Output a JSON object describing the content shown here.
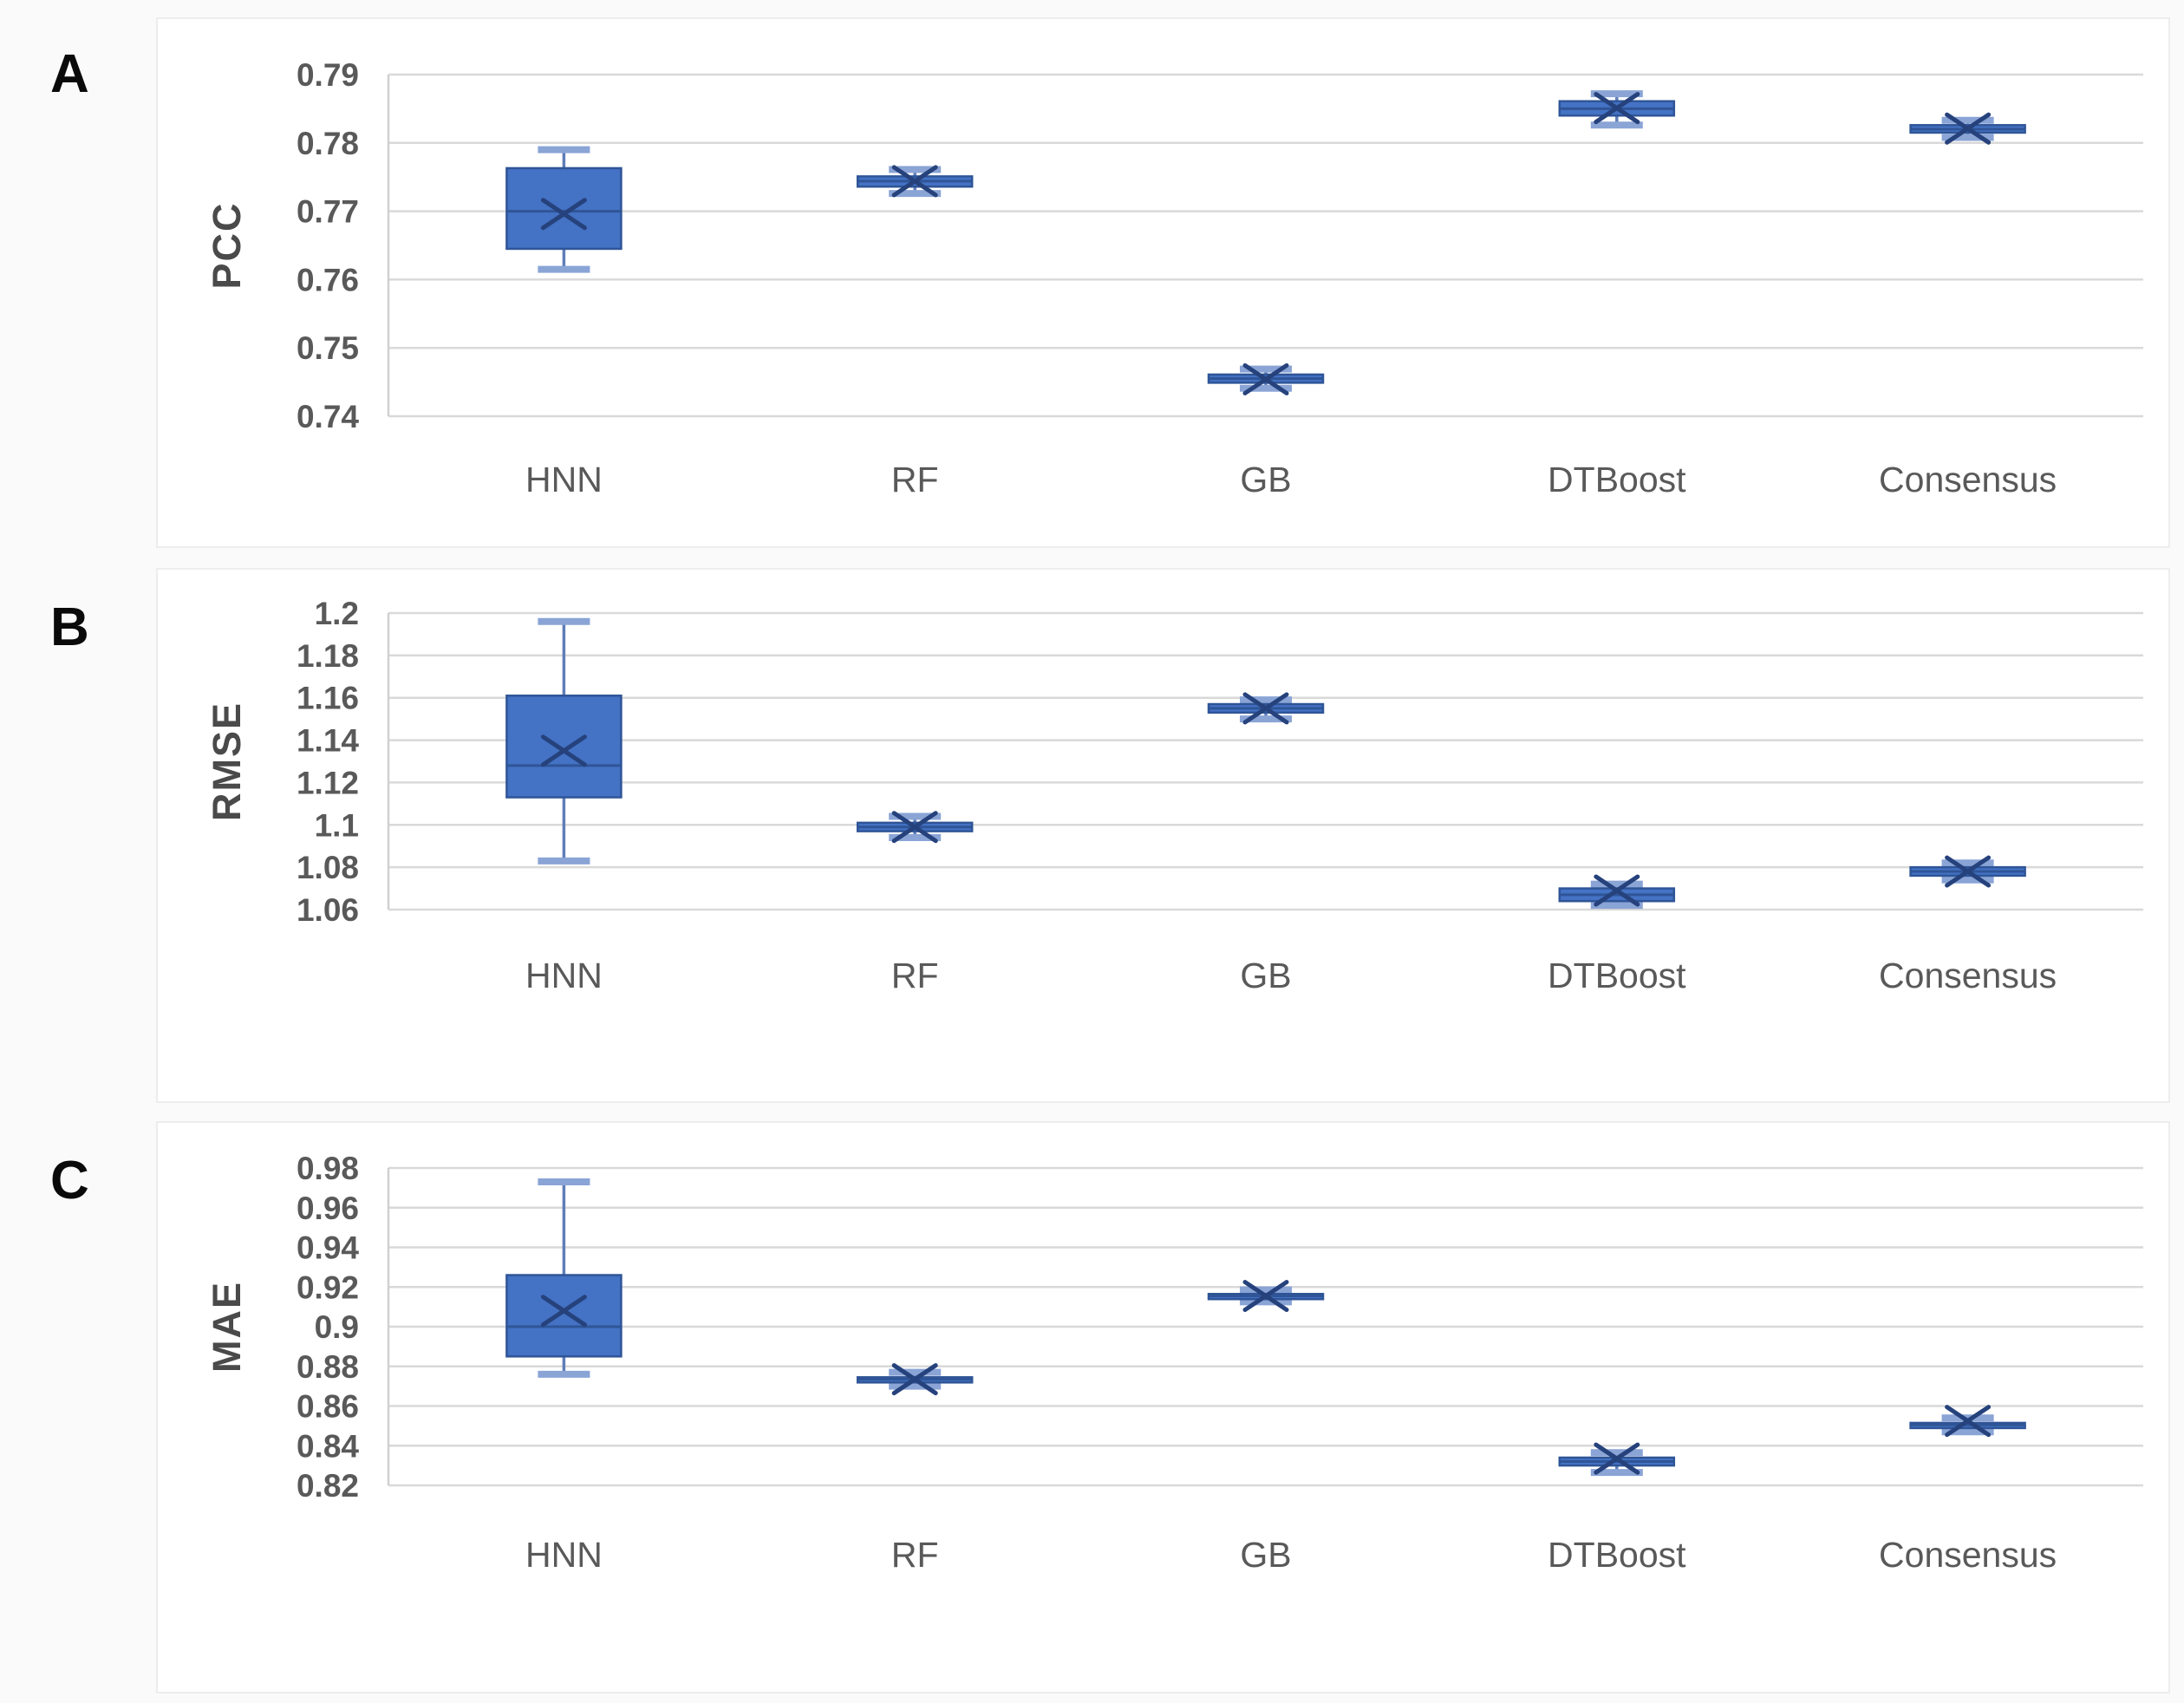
{
  "figure": {
    "panel_letters": [
      "A",
      "B",
      "C"
    ],
    "categories": [
      "HNN",
      "RF",
      "GB",
      "DTBoost",
      "Consensus"
    ]
  },
  "colors": {
    "box_fill": "#4472c4",
    "box_border": "#2f5597",
    "median_line": "#2f5597",
    "whisker_line": "#5f7db8",
    "whisker_cap": "#8aa4d6",
    "mean_marker": "#26427c",
    "gridline": "#d9d9d9",
    "axis_line": "#d0d0d0",
    "label_text": "#595959"
  },
  "chart_data": [
    {
      "type": "box",
      "panel_label": "A",
      "ylabel": "PCC",
      "xlabel": "",
      "ylim": [
        0.74,
        0.79
      ],
      "grid": true,
      "categories": [
        "HNN",
        "RF",
        "GB",
        "DTBoost",
        "Consensus"
      ],
      "yticks": [
        {
          "label": "0.79",
          "value": 0.79
        },
        {
          "label": "0.78",
          "value": 0.78
        },
        {
          "label": "0.77",
          "value": 0.77
        },
        {
          "label": "0.76",
          "value": 0.76
        },
        {
          "label": "0.75",
          "value": 0.75
        },
        {
          "label": "0.74",
          "value": 0.74
        }
      ],
      "series": [
        {
          "category": "HNN",
          "whisker_low": 0.7615,
          "q1": 0.7645,
          "median": 0.77,
          "mean": 0.7696,
          "q3": 0.7763,
          "whisker_high": 0.779
        },
        {
          "category": "RF",
          "whisker_low": 0.7726,
          "q1": 0.7736,
          "median": 0.7744,
          "mean": 0.7744,
          "q3": 0.7751,
          "whisker_high": 0.7761
        },
        {
          "category": "GB",
          "whisker_low": 0.7441,
          "q1": 0.7449,
          "median": 0.7455,
          "mean": 0.7454,
          "q3": 0.7461,
          "whisker_high": 0.7469
        },
        {
          "category": "DTBoost",
          "whisker_low": 0.7826,
          "q1": 0.784,
          "median": 0.785,
          "mean": 0.7851,
          "q3": 0.7861,
          "whisker_high": 0.7872
        },
        {
          "category": "Consensus",
          "whisker_low": 0.7808,
          "q1": 0.7815,
          "median": 0.782,
          "mean": 0.7821,
          "q3": 0.7826,
          "whisker_high": 0.7833
        }
      ]
    },
    {
      "type": "box",
      "panel_label": "B",
      "ylabel": "RMSE",
      "xlabel": "",
      "ylim": [
        1.06,
        1.2
      ],
      "grid": true,
      "categories": [
        "HNN",
        "RF",
        "GB",
        "DTBoost",
        "Consensus"
      ],
      "yticks": [
        {
          "label": "1.2",
          "value": 1.2
        },
        {
          "label": "1.18",
          "value": 1.18
        },
        {
          "label": "1.16",
          "value": 1.16
        },
        {
          "label": "1.14",
          "value": 1.14
        },
        {
          "label": "1.12",
          "value": 1.12
        },
        {
          "label": "1.1",
          "value": 1.1
        },
        {
          "label": "1.08",
          "value": 1.08
        },
        {
          "label": "1.06",
          "value": 1.06
        }
      ],
      "series": [
        {
          "category": "HNN",
          "whisker_low": 1.083,
          "q1": 1.113,
          "median": 1.128,
          "mean": 1.135,
          "q3": 1.161,
          "whisker_high": 1.196
        },
        {
          "category": "RF",
          "whisker_low": 1.094,
          "q1": 1.097,
          "median": 1.099,
          "mean": 1.099,
          "q3": 1.101,
          "whisker_high": 1.104
        },
        {
          "category": "GB",
          "whisker_low": 1.15,
          "q1": 1.153,
          "median": 1.155,
          "mean": 1.155,
          "q3": 1.157,
          "whisker_high": 1.159
        },
        {
          "category": "DTBoost",
          "whisker_low": 1.062,
          "q1": 1.064,
          "median": 1.067,
          "mean": 1.069,
          "q3": 1.07,
          "whisker_high": 1.072
        },
        {
          "category": "Consensus",
          "whisker_low": 1.074,
          "q1": 1.076,
          "median": 1.078,
          "mean": 1.078,
          "q3": 1.08,
          "whisker_high": 1.082
        }
      ]
    },
    {
      "type": "box",
      "panel_label": "C",
      "ylabel": "MAE",
      "xlabel": "",
      "ylim": [
        0.82,
        0.98
      ],
      "grid": true,
      "categories": [
        "HNN",
        "RF",
        "GB",
        "DTBoost",
        "Consensus"
      ],
      "yticks": [
        {
          "label": "0.98",
          "value": 0.98
        },
        {
          "label": "0.96",
          "value": 0.96
        },
        {
          "label": "0.94",
          "value": 0.94
        },
        {
          "label": "0.92",
          "value": 0.92
        },
        {
          "label": "0.9",
          "value": 0.9
        },
        {
          "label": "0.88",
          "value": 0.88
        },
        {
          "label": "0.86",
          "value": 0.86
        },
        {
          "label": "0.84",
          "value": 0.84
        },
        {
          "label": "0.82",
          "value": 0.82
        }
      ],
      "series": [
        {
          "category": "HNN",
          "whisker_low": 0.876,
          "q1": 0.885,
          "median": 0.9,
          "mean": 0.908,
          "q3": 0.926,
          "whisker_high": 0.973
        },
        {
          "category": "RF",
          "whisker_low": 0.87,
          "q1": 0.8725,
          "median": 0.8735,
          "mean": 0.8735,
          "q3": 0.8745,
          "whisker_high": 0.877
        },
        {
          "category": "GB",
          "whisker_low": 0.9125,
          "q1": 0.9145,
          "median": 0.9155,
          "mean": 0.9155,
          "q3": 0.9165,
          "whisker_high": 0.9185
        },
        {
          "category": "DTBoost",
          "whisker_low": 0.8265,
          "q1": 0.83,
          "median": 0.832,
          "mean": 0.8335,
          "q3": 0.834,
          "whisker_high": 0.8365
        },
        {
          "category": "Consensus",
          "whisker_low": 0.847,
          "q1": 0.8495,
          "median": 0.8505,
          "mean": 0.8525,
          "q3": 0.8515,
          "whisker_high": 0.854
        }
      ]
    }
  ]
}
